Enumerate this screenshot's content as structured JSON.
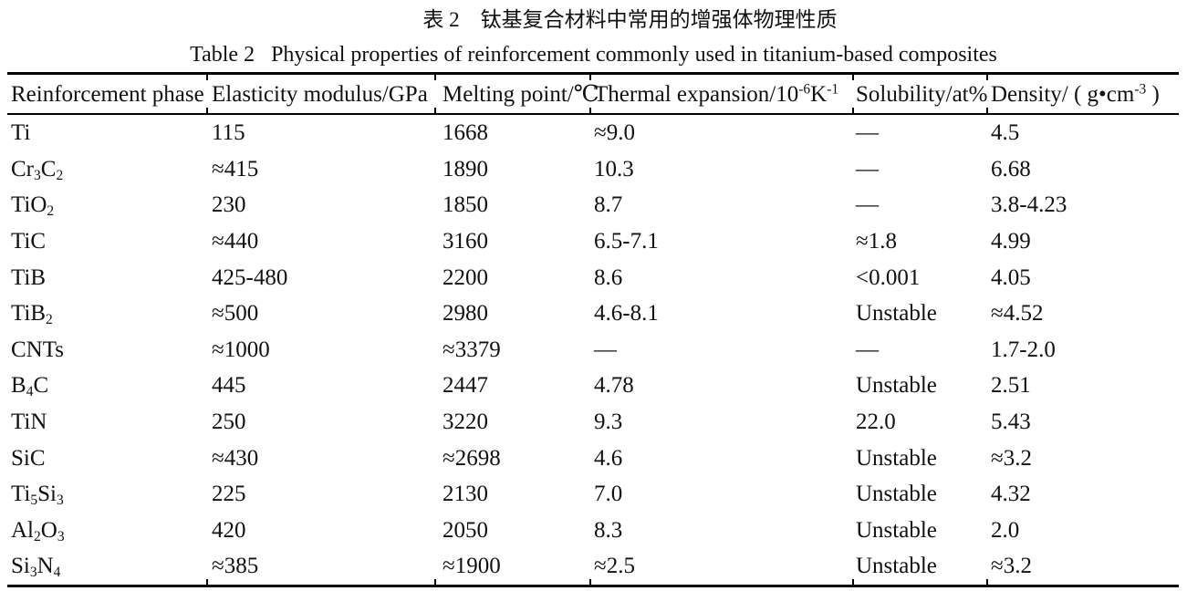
{
  "page": {
    "title_zh": "表 2　钛基复合材料中常用的增强体物理性质",
    "title_en": "Table 2   Physical properties of reinforcement commonly used in titanium-based composites"
  },
  "table": {
    "col_keys": [
      "phase",
      "elasticity-modulus",
      "melting-point",
      "thermal-expansion",
      "solubility",
      "density"
    ],
    "headers": [
      "Reinforcement phase",
      "Elasticity modulus/GPa",
      "Melting point/℃",
      "Thermal expansion/10^{-6}K^{-1}",
      "Solubility/at%",
      "Density/ ( g•cm^{-3} )"
    ],
    "rows": [
      [
        "Ti",
        "115",
        "1668",
        "≈9.0",
        "—",
        "4.5"
      ],
      [
        "Cr_{3}C_{2}",
        "≈415",
        "1890",
        "10.3",
        "—",
        "6.68"
      ],
      [
        "TiO_{2}",
        "230",
        "1850",
        "8.7",
        "—",
        "3.8-4.23"
      ],
      [
        "TiC",
        "≈440",
        "3160",
        "6.5-7.1",
        "≈1.8",
        "4.99"
      ],
      [
        "TiB",
        "425-480",
        "2200",
        "8.6",
        "<0.001",
        "4.05"
      ],
      [
        "TiB_{2}",
        "≈500",
        "2980",
        "4.6-8.1",
        "Unstable",
        "≈4.52"
      ],
      [
        "CNTs",
        "≈1000",
        "≈3379",
        "—",
        "—",
        "1.7-2.0"
      ],
      [
        "B_{4}C",
        "445",
        "2447",
        "4.78",
        "Unstable",
        "2.51"
      ],
      [
        "TiN",
        "250",
        "3220",
        "9.3",
        "22.0",
        "5.43"
      ],
      [
        "SiC",
        "≈430",
        "≈2698",
        "4.6",
        "Unstable",
        "≈3.2"
      ],
      [
        "Ti_{5}Si_{3}",
        "225",
        "2130",
        "7.0",
        "Unstable",
        "4.32"
      ],
      [
        "Al_{2}O_{3}",
        "420",
        "2050",
        "8.3",
        "Unstable",
        "2.0"
      ],
      [
        "Si_{3}N_{4}",
        "≈385",
        "≈1900",
        "≈2.5",
        "Unstable",
        "≈3.2"
      ]
    ]
  }
}
